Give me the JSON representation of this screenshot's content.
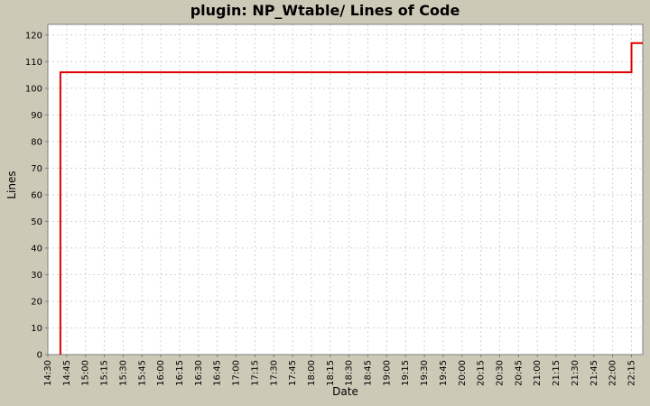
{
  "chart_data": {
    "type": "line",
    "title": "plugin: NP_Wtable/ Lines of Code",
    "xlabel": "Date",
    "ylabel": "Lines",
    "grid": true,
    "legend": "none",
    "x_axis": {
      "min_minutes": 870,
      "max_minutes": 1344,
      "tick_interval_minutes": 15
    },
    "x_tick_labels": [
      "14:30",
      "14:45",
      "15:00",
      "15:15",
      "15:30",
      "15:45",
      "16:00",
      "16:15",
      "16:30",
      "16:45",
      "17:00",
      "17:15",
      "17:30",
      "17:45",
      "18:00",
      "18:15",
      "18:30",
      "18:45",
      "19:00",
      "19:15",
      "19:30",
      "19:45",
      "20:00",
      "20:15",
      "20:30",
      "20:45",
      "21:00",
      "21:15",
      "21:30",
      "21:45",
      "22:00",
      "22:15"
    ],
    "y_ticks": [
      0,
      10,
      20,
      30,
      40,
      50,
      60,
      70,
      80,
      90,
      100,
      110,
      120
    ],
    "y_range": [
      0,
      124
    ],
    "series": [
      {
        "name": "Lines of Code",
        "color": "#dd0000",
        "points_minutes": [
          [
            880,
            0
          ],
          [
            880,
            106
          ],
          [
            1335,
            106
          ],
          [
            1335,
            117
          ],
          [
            1344,
            117
          ]
        ]
      }
    ],
    "colors": {
      "background": "#cdc9b7",
      "plot_background": "#ffffff",
      "grid": "#d2d2d2",
      "border": "#7f7f7f",
      "tick": "#7f7f7f",
      "text": "#000000"
    }
  }
}
